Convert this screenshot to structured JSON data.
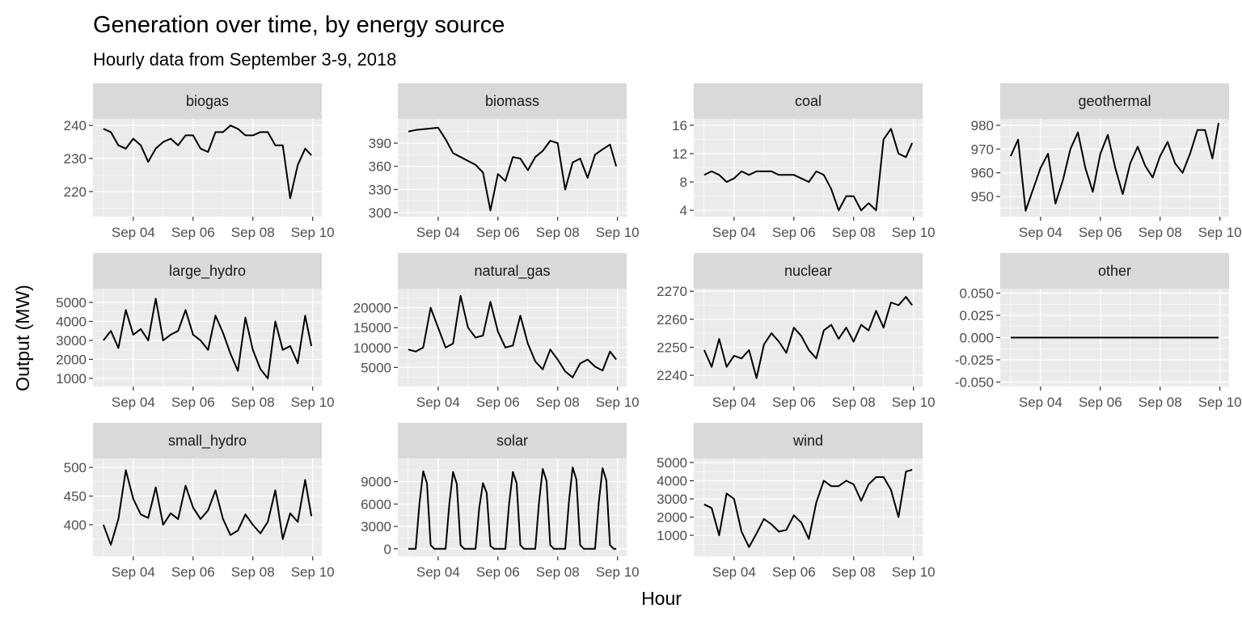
{
  "chart_data": {
    "type": "line",
    "title": "Generation over time, by energy source",
    "subtitle": "Hourly data from September 3-9, 2018",
    "xlabel": "Hour",
    "ylabel": "Output (MW)",
    "x_unit": "hours since Sep 03 00:00",
    "x_range_hours": [
      0,
      167
    ],
    "x_ticks": [
      {
        "hour": 24,
        "label": "Sep 04"
      },
      {
        "hour": 72,
        "label": "Sep 06"
      },
      {
        "hour": 120,
        "label": "Sep 08"
      },
      {
        "hour": 168,
        "label": "Sep 10"
      }
    ],
    "x_hours": [
      0,
      6,
      12,
      18,
      24,
      30,
      36,
      42,
      48,
      54,
      60,
      66,
      72,
      78,
      84,
      90,
      96,
      102,
      108,
      114,
      120,
      126,
      132,
      138,
      144,
      150,
      156,
      162,
      168
    ],
    "grid": true,
    "line_color": "#000000",
    "panel_background": "#ebebeb",
    "strip_background": "#d9d9d9",
    "facets": [
      {
        "name": "biogas",
        "ylim": [
          212.4,
          242
        ],
        "yticks": [
          "220",
          "230",
          "240"
        ],
        "ytick_values": [
          220,
          230,
          240
        ],
        "values": [
          239,
          238,
          234,
          233,
          236,
          234,
          229,
          233,
          235,
          236,
          234,
          237,
          237,
          233,
          232,
          238,
          238,
          240,
          239,
          237,
          237,
          238,
          238,
          234,
          234,
          218,
          228,
          233,
          231
        ]
      },
      {
        "name": "biomass",
        "ylim": [
          294.8,
          421.4
        ],
        "yticks": [
          "300",
          "330",
          "360",
          "390"
        ],
        "ytick_values": [
          300,
          330,
          360,
          390
        ],
        "values": [
          405,
          407,
          408,
          409,
          410,
          395,
          377,
          372,
          367,
          362,
          352,
          303,
          350,
          341,
          372,
          370,
          355,
          372,
          380,
          393,
          390,
          330,
          365,
          370,
          345,
          375,
          382,
          388,
          360
        ]
      },
      {
        "name": "coal",
        "ylim": [
          3.1,
          16.9
        ],
        "yticks": [
          "4",
          "8",
          "12",
          "16"
        ],
        "ytick_values": [
          4,
          8,
          12,
          16
        ],
        "values": [
          9,
          9.5,
          9,
          8,
          8.5,
          9.5,
          9,
          9.5,
          9.5,
          9.5,
          9,
          9,
          9,
          8.5,
          8,
          9.5,
          9,
          7,
          4,
          6,
          6,
          4,
          5,
          4,
          14,
          15.5,
          12,
          11.5,
          13.5
        ]
      },
      {
        "name": "geothermal",
        "ylim": [
          941.5,
          982.7
        ],
        "yticks": [
          "950",
          "960",
          "970",
          "980"
        ],
        "ytick_values": [
          950,
          960,
          970,
          980
        ],
        "values": [
          967,
          974,
          944,
          953,
          962,
          968,
          947,
          957,
          970,
          977,
          962,
          952,
          968,
          976,
          962,
          951,
          964,
          971,
          963,
          958,
          967,
          973,
          964,
          960,
          968,
          978,
          978,
          966,
          981
        ]
      },
      {
        "name": "large_hydro",
        "ylim": [
          574,
          5723
        ],
        "yticks": [
          "1000",
          "2000",
          "3000",
          "4000",
          "5000"
        ],
        "ytick_values": [
          1000,
          2000,
          3000,
          4000,
          5000
        ],
        "values": [
          3000,
          3500,
          2600,
          4600,
          3300,
          3600,
          3000,
          5200,
          3000,
          3300,
          3500,
          4600,
          3300,
          3000,
          2500,
          4300,
          3400,
          2300,
          1400,
          4200,
          2500,
          1500,
          1000,
          4000,
          2500,
          2700,
          1800,
          4300,
          2700
        ]
      },
      {
        "name": "natural_gas",
        "ylim": [
          200,
          24800
        ],
        "yticks": [
          "5000",
          "10000",
          "15000",
          "20000"
        ],
        "ytick_values": [
          5000,
          10000,
          15000,
          20000
        ],
        "values": [
          9500,
          9000,
          10000,
          20000,
          15000,
          10000,
          11000,
          23000,
          15000,
          12500,
          13000,
          21500,
          14000,
          10000,
          10500,
          18000,
          11000,
          6500,
          4500,
          9500,
          7000,
          4000,
          2500,
          6000,
          7000,
          5200,
          4200,
          9000,
          7000
        ]
      },
      {
        "name": "nuclear",
        "ylim": [
          2236,
          2270.9
        ],
        "yticks": [
          "2240",
          "2250",
          "2260",
          "2270"
        ],
        "ytick_values": [
          2240,
          2250,
          2260,
          2270
        ],
        "values": [
          2249,
          2243,
          2253,
          2243,
          2247,
          2246,
          2249,
          2239,
          2251,
          2255,
          2252,
          2248,
          2257,
          2254,
          2249,
          2246,
          2256,
          2258,
          2253,
          2257,
          2252,
          2258,
          2256,
          2263,
          2257,
          2266,
          2265,
          2268,
          2265
        ]
      },
      {
        "name": "other",
        "ylim": [
          -0.055,
          0.055
        ],
        "yticks": [
          "-0.050",
          "-0.025",
          "0.000",
          "0.025",
          "0.050"
        ],
        "ytick_values": [
          -0.05,
          -0.025,
          0,
          0.025,
          0.05
        ],
        "values": [
          0,
          0,
          0,
          0,
          0,
          0,
          0,
          0,
          0,
          0,
          0,
          0,
          0,
          0,
          0,
          0,
          0,
          0,
          0,
          0,
          0,
          0,
          0,
          0,
          0,
          0,
          0,
          0,
          0
        ]
      },
      {
        "name": "small_hydro",
        "ylim": [
          345,
          515.5
        ],
        "yticks": [
          "400",
          "450",
          "500"
        ],
        "ytick_values": [
          400,
          450,
          500
        ],
        "values": [
          400,
          365,
          410,
          495,
          445,
          418,
          412,
          465,
          400,
          420,
          410,
          468,
          430,
          410,
          425,
          460,
          410,
          382,
          390,
          418,
          400,
          385,
          405,
          460,
          375,
          420,
          405,
          478,
          415
        ]
      },
      {
        "name": "solar",
        "ylim": [
          -1000,
          12100
        ],
        "yticks": [
          "0",
          "3000",
          "6000",
          "9000"
        ],
        "ytick_values": [
          0,
          3000,
          6000,
          9000
        ],
        "x_hours_step": 3,
        "values": [
          0,
          0,
          0,
          6000,
          10400,
          8800,
          500,
          0,
          0,
          0,
          0,
          6000,
          10300,
          8700,
          500,
          0,
          0,
          0,
          0,
          5500,
          8800,
          7500,
          400,
          0,
          0,
          0,
          0,
          6000,
          10300,
          8800,
          500,
          0,
          0,
          0,
          0,
          6200,
          10700,
          9100,
          500,
          0,
          0,
          0,
          0,
          6300,
          10900,
          9300,
          500,
          0,
          0,
          0,
          0,
          6300,
          10800,
          9200,
          500,
          0,
          0
        ]
      },
      {
        "name": "wind",
        "ylim": [
          -155,
          5222
        ],
        "yticks": [
          "1000",
          "2000",
          "3000",
          "4000",
          "5000"
        ],
        "ytick_values": [
          1000,
          2000,
          3000,
          4000,
          5000
        ],
        "values": [
          2700,
          2500,
          1000,
          3300,
          3000,
          1200,
          350,
          1100,
          1900,
          1600,
          1200,
          1300,
          2100,
          1700,
          800,
          2800,
          4000,
          3700,
          3700,
          4000,
          3800,
          2900,
          3800,
          4200,
          4200,
          3500,
          2000,
          4500,
          4600
        ]
      }
    ]
  }
}
